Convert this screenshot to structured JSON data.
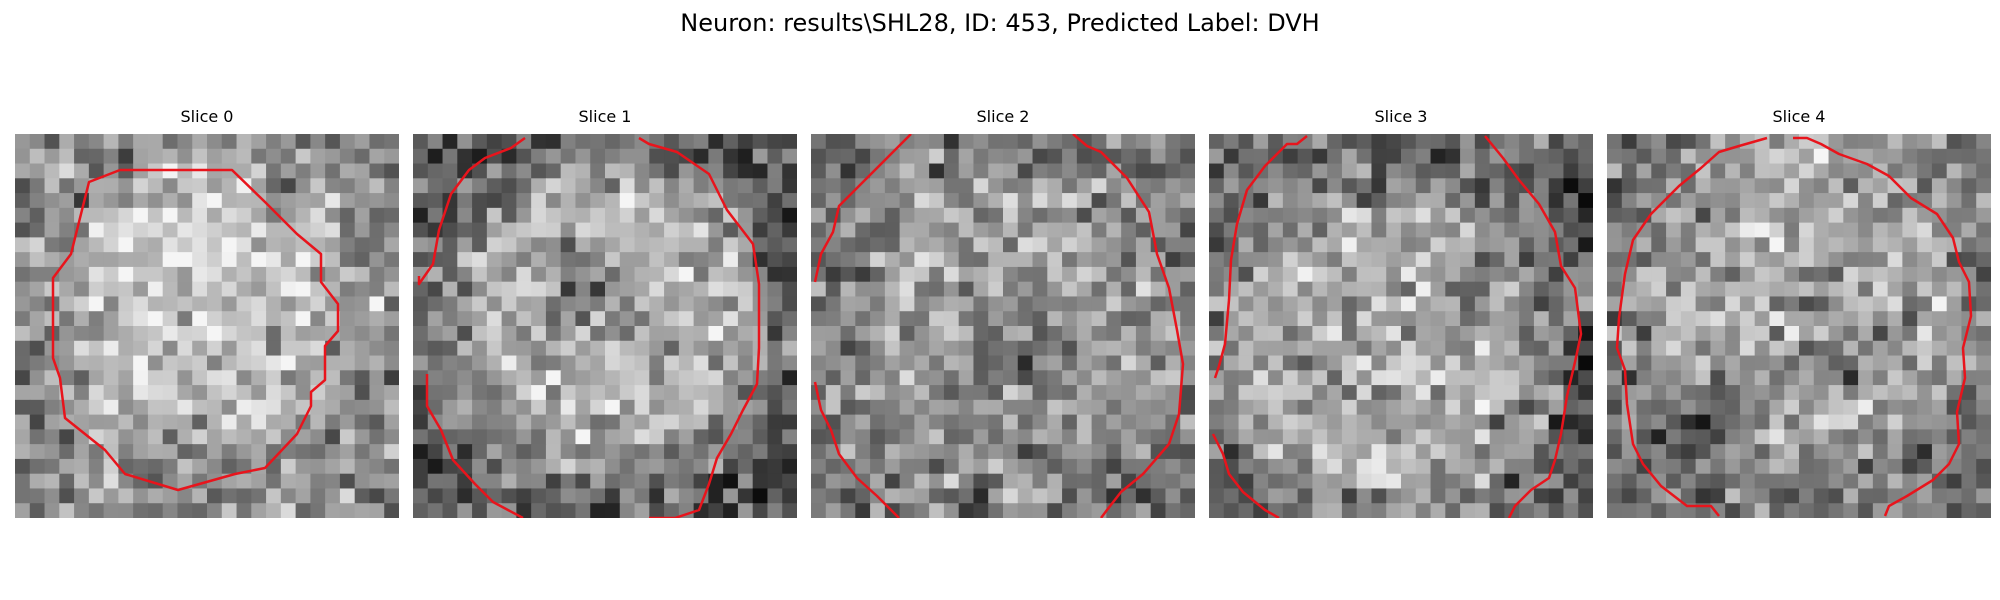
{
  "figure": {
    "title": "Neuron: results\\SHL28, ID: 453, Predicted Label: DVH"
  },
  "slices": [
    {
      "title": "Slice 0"
    },
    {
      "title": "Slice 1"
    },
    {
      "title": "Slice 2"
    },
    {
      "title": "Slice 3"
    },
    {
      "title": "Slice 4"
    }
  ],
  "colors": {
    "contour": "#e8141c",
    "colormap": "grayscale"
  }
}
